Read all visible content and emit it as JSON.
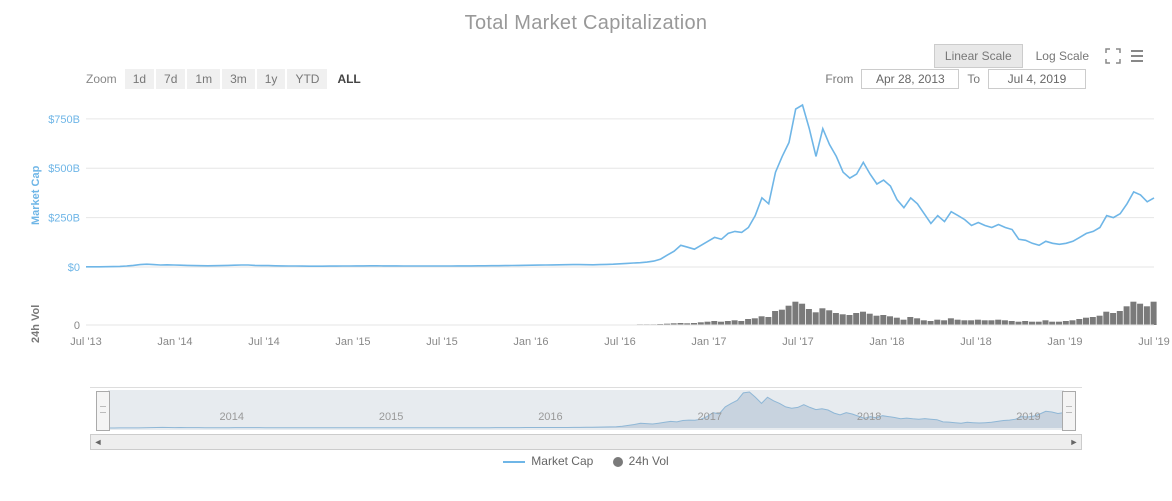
{
  "title": "Total Market Capitalization",
  "scale": {
    "linear_label": "Linear Scale",
    "log_label": "Log Scale",
    "active": "linear"
  },
  "zoom": {
    "label": "Zoom",
    "options": [
      {
        "label": "1d"
      },
      {
        "label": "7d"
      },
      {
        "label": "1m"
      },
      {
        "label": "3m"
      },
      {
        "label": "1y"
      },
      {
        "label": "YTD"
      },
      {
        "label": "ALL",
        "active": true
      }
    ]
  },
  "range": {
    "from_label": "From",
    "from_value": "Apr 28, 2013",
    "to_label": "To",
    "to_value": "Jul 4, 2019"
  },
  "axes": {
    "mcap_title": "Market Cap",
    "vol_title": "24h Vol",
    "mcap_ticks": [
      {
        "label": "$0",
        "value": 0
      },
      {
        "label": "$250B",
        "value": 250
      },
      {
        "label": "$500B",
        "value": 500
      },
      {
        "label": "$750B",
        "value": 750
      }
    ],
    "vol_ticks": [
      {
        "label": "0",
        "value": 0
      }
    ],
    "mcap_range": [
      0,
      820
    ],
    "vol_range": [
      0,
      120
    ],
    "x_labels": [
      "Jul '13",
      "Jan '14",
      "Jul '14",
      "Jan '15",
      "Jul '15",
      "Jan '16",
      "Jul '16",
      "Jan '17",
      "Jul '17",
      "Jan '18",
      "Jul '18",
      "Jan '19",
      "Jul '19"
    ]
  },
  "colors": {
    "line": "#6fb6e7",
    "tick_label": "#6fb6e7",
    "x_label": "#888888",
    "grid": "#e6e6e6",
    "vol_bar": "#7a7a7a",
    "nav_fill": "#dde2e8",
    "nav_line": "#8fb7d6",
    "nav_year_label": "#999999"
  },
  "market_cap_series": [
    1,
    1,
    1.2,
    1.5,
    2,
    3,
    5,
    8,
    12,
    14,
    12,
    10,
    11,
    10,
    9,
    8,
    7,
    6.5,
    6,
    6.5,
    7,
    8,
    9,
    10,
    10,
    8,
    7,
    7,
    6,
    5.5,
    5,
    5,
    4.5,
    4,
    4,
    4.2,
    4.5,
    4.8,
    5,
    5.2,
    5.5,
    5.8,
    6,
    6,
    5.8,
    5.6,
    5.5,
    5.3,
    5.2,
    5.1,
    5,
    5,
    5,
    5.1,
    5.2,
    5.4,
    5.6,
    5.8,
    6,
    6.2,
    6.4,
    6.8,
    7,
    7.4,
    8,
    8.5,
    9,
    9.5,
    10,
    10.5,
    11,
    11.5,
    12,
    12,
    11.5,
    11,
    12,
    13,
    14,
    16,
    18,
    20,
    22,
    25,
    30,
    40,
    60,
    80,
    110,
    100,
    90,
    110,
    130,
    150,
    140,
    170,
    180,
    175,
    200,
    260,
    350,
    320,
    480,
    560,
    630,
    800,
    820,
    700,
    560,
    700,
    620,
    560,
    480,
    450,
    470,
    530,
    470,
    420,
    440,
    410,
    340,
    300,
    350,
    320,
    270,
    220,
    260,
    230,
    280,
    260,
    240,
    210,
    225,
    210,
    200,
    215,
    200,
    190,
    140,
    135,
    120,
    110,
    130,
    120,
    115,
    120,
    130,
    150,
    170,
    180,
    200,
    260,
    250,
    270,
    320,
    380,
    365,
    330,
    350
  ],
  "volume_series": [
    0,
    0,
    0,
    0,
    0,
    0,
    0,
    0,
    0,
    0,
    0,
    0,
    0,
    0,
    0,
    0,
    0,
    0,
    0,
    0,
    0,
    0,
    0,
    0,
    0,
    0,
    0,
    0,
    0,
    0,
    0,
    0,
    0,
    0,
    0,
    0,
    0,
    0,
    0,
    0,
    0,
    0,
    0,
    0,
    0,
    0,
    0,
    0,
    0,
    0,
    0,
    0,
    0,
    0,
    0,
    0,
    0,
    0,
    0,
    0,
    0,
    0,
    0,
    0,
    0,
    0,
    0,
    0,
    0,
    0,
    0,
    0,
    0,
    0,
    0,
    0,
    1,
    1,
    1,
    1,
    1,
    1,
    2,
    2,
    2,
    3,
    4,
    5,
    6,
    5,
    6,
    8,
    10,
    12,
    10,
    12,
    14,
    12,
    18,
    20,
    26,
    24,
    42,
    46,
    58,
    70,
    64,
    48,
    38,
    50,
    44,
    36,
    32,
    30,
    36,
    40,
    34,
    28,
    30,
    26,
    22,
    16,
    24,
    20,
    14,
    12,
    16,
    14,
    20,
    16,
    14,
    14,
    16,
    14,
    14,
    16,
    14,
    12,
    10,
    12,
    10,
    10,
    14,
    10,
    10,
    12,
    14,
    18,
    22,
    24,
    28,
    40,
    36,
    42,
    56,
    70,
    64,
    56,
    70
  ],
  "navigator": {
    "year_labels": [
      "2014",
      "2015",
      "2016",
      "2017",
      "2018",
      "2019"
    ]
  },
  "legend": {
    "mcap_label": "Market Cap",
    "vol_label": "24h Vol"
  }
}
